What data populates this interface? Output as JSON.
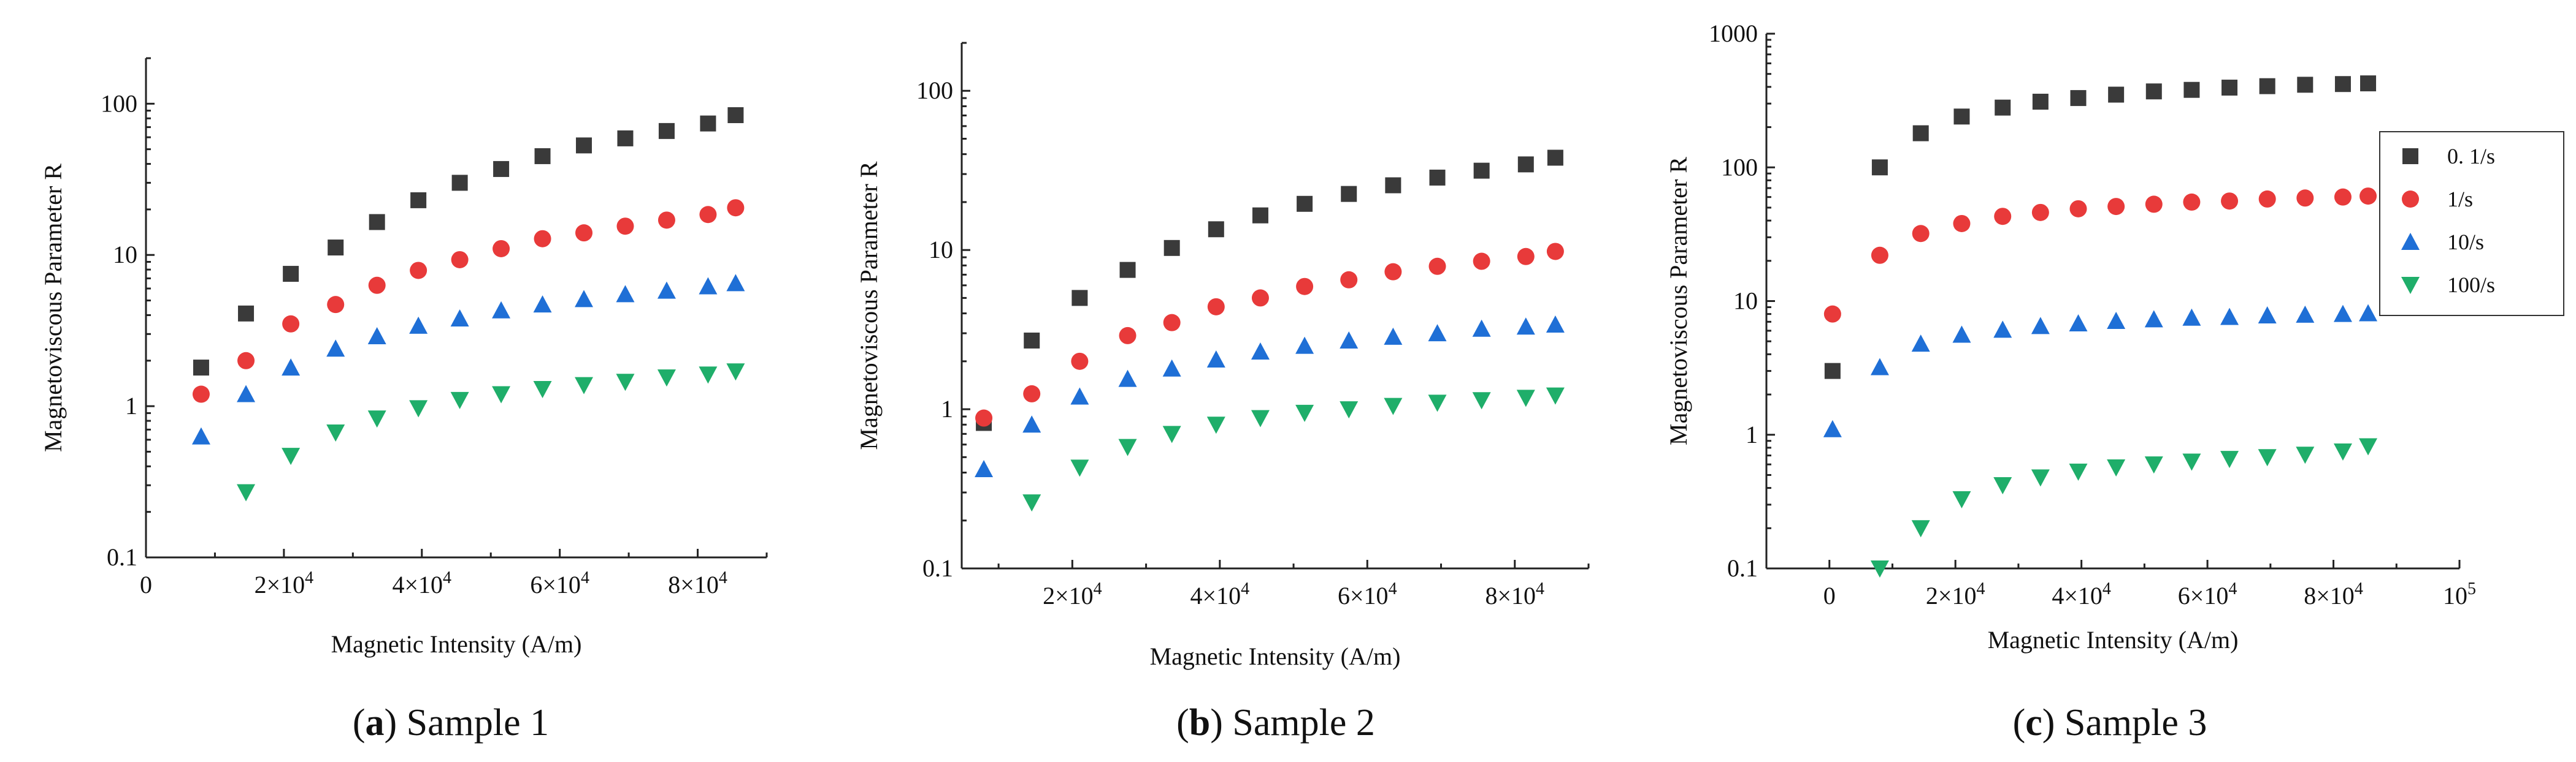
{
  "colors": {
    "s1": "#3a3a3a",
    "s2": "#e83a3a",
    "s3": "#1f6fd6",
    "s4": "#1fae6a"
  },
  "legend": [
    {
      "label": "0. 1/s",
      "marker": "square",
      "color": "#3a3a3a"
    },
    {
      "label": "1/s",
      "marker": "circle",
      "color": "#e83a3a"
    },
    {
      "label": "10/s",
      "marker": "triangle-up",
      "color": "#1f6fd6"
    },
    {
      "label": "100/s",
      "marker": "triangle-down",
      "color": "#1fae6a"
    }
  ],
  "chart_data": [
    {
      "type": "scatter",
      "caption_letter": "a",
      "caption_text": "Sample 1",
      "xlabel": "Magnetic Intensity (A/m)",
      "ylabel": "Magnetoviscous Parameter R",
      "xlim": [
        0,
        90000
      ],
      "ylim": [
        0.1,
        200
      ],
      "yscale": "log",
      "xticks": [
        {
          "value": 0,
          "base": "0",
          "exp": ""
        },
        {
          "value": 20000,
          "base": "2×10",
          "exp": "4"
        },
        {
          "value": 40000,
          "base": "4×10",
          "exp": "4"
        },
        {
          "value": 60000,
          "base": "6×10",
          "exp": "4"
        },
        {
          "value": 80000,
          "base": "8×10",
          "exp": "4"
        }
      ],
      "yticks": [
        {
          "value": 0.1,
          "label": "0.1"
        },
        {
          "value": 1,
          "label": "1"
        },
        {
          "value": 10,
          "label": "10"
        },
        {
          "value": 100,
          "label": "100"
        }
      ],
      "series": [
        {
          "name": "0. 1/s",
          "marker": "square",
          "color": "#3a3a3a",
          "x": [
            8000,
            14500,
            21000,
            27500,
            33500,
            39500,
            45500,
            51500,
            57500,
            63500,
            69500,
            75500,
            81500,
            85500
          ],
          "y": [
            1.8,
            4.1,
            7.5,
            11.2,
            16.5,
            23,
            30,
            37,
            45,
            53,
            59,
            66,
            74,
            84
          ]
        },
        {
          "name": "1/s",
          "marker": "circle",
          "color": "#e83a3a",
          "x": [
            8000,
            14500,
            21000,
            27500,
            33500,
            39500,
            45500,
            51500,
            57500,
            63500,
            69500,
            75500,
            81500,
            85500
          ],
          "y": [
            1.2,
            2.0,
            3.5,
            4.7,
            6.3,
            7.9,
            9.3,
            11,
            12.8,
            14,
            15.5,
            17,
            18.5,
            20.5
          ]
        },
        {
          "name": "10/s",
          "marker": "triangle-up",
          "color": "#1f6fd6",
          "x": [
            8000,
            14500,
            21000,
            27500,
            33500,
            39500,
            45500,
            51500,
            57500,
            63500,
            69500,
            75500,
            81500,
            85500
          ],
          "y": [
            0.63,
            1.2,
            1.8,
            2.4,
            2.9,
            3.4,
            3.8,
            4.3,
            4.7,
            5.1,
            5.5,
            5.8,
            6.2,
            6.5
          ]
        },
        {
          "name": "100/s",
          "marker": "triangle-down",
          "color": "#1fae6a",
          "x": [
            14500,
            21000,
            27500,
            33500,
            39500,
            45500,
            51500,
            57500,
            63500,
            69500,
            75500,
            81500,
            85500
          ],
          "y": [
            0.27,
            0.47,
            0.67,
            0.83,
            0.97,
            1.1,
            1.2,
            1.3,
            1.38,
            1.45,
            1.55,
            1.62,
            1.7
          ]
        }
      ]
    },
    {
      "type": "scatter",
      "caption_letter": "b",
      "caption_text": "Sample 2",
      "xlabel": "Magnetic Intensity (A/m)",
      "ylabel": "Magnetoviscous Parameter R",
      "xlim": [
        5000,
        90000
      ],
      "ylim": [
        0.1,
        200
      ],
      "yscale": "log",
      "xticks": [
        {
          "value": 20000,
          "base": "2×10",
          "exp": "4"
        },
        {
          "value": 40000,
          "base": "4×10",
          "exp": "4"
        },
        {
          "value": 60000,
          "base": "6×10",
          "exp": "4"
        },
        {
          "value": 80000,
          "base": "8×10",
          "exp": "4"
        }
      ],
      "yticks": [
        {
          "value": 0.1,
          "label": "0.1"
        },
        {
          "value": 1,
          "label": "1"
        },
        {
          "value": 10,
          "label": "10"
        },
        {
          "value": 100,
          "label": "100"
        }
      ],
      "series": [
        {
          "name": "0. 1/s",
          "marker": "square",
          "color": "#3a3a3a",
          "x": [
            8000,
            14500,
            21000,
            27500,
            33500,
            39500,
            45500,
            51500,
            57500,
            63500,
            69500,
            75500,
            81500,
            85500
          ],
          "y": [
            0.82,
            2.7,
            5.0,
            7.5,
            10.3,
            13.5,
            16.5,
            19.5,
            22.5,
            25.5,
            28.5,
            31.5,
            34.5,
            38
          ]
        },
        {
          "name": "1/s",
          "marker": "circle",
          "color": "#e83a3a",
          "x": [
            8000,
            14500,
            21000,
            27500,
            33500,
            39500,
            45500,
            51500,
            57500,
            63500,
            69500,
            75500,
            81500,
            85500
          ],
          "y": [
            0.88,
            1.25,
            2.0,
            2.9,
            3.5,
            4.4,
            5.0,
            5.9,
            6.5,
            7.3,
            7.9,
            8.5,
            9.1,
            9.8
          ]
        },
        {
          "name": "10/s",
          "marker": "triangle-up",
          "color": "#1f6fd6",
          "x": [
            8000,
            14500,
            21000,
            27500,
            33500,
            39500,
            45500,
            51500,
            57500,
            63500,
            69500,
            75500,
            81500,
            85500
          ],
          "y": [
            0.42,
            0.8,
            1.2,
            1.55,
            1.8,
            2.05,
            2.3,
            2.5,
            2.7,
            2.85,
            3.0,
            3.2,
            3.3,
            3.4
          ]
        },
        {
          "name": "100/s",
          "marker": "triangle-down",
          "color": "#1fae6a",
          "x": [
            14500,
            21000,
            27500,
            33500,
            39500,
            45500,
            51500,
            57500,
            63500,
            69500,
            75500,
            81500,
            85500
          ],
          "y": [
            0.26,
            0.43,
            0.58,
            0.7,
            0.8,
            0.88,
            0.95,
            1.0,
            1.05,
            1.1,
            1.14,
            1.18,
            1.22
          ]
        }
      ]
    },
    {
      "type": "scatter",
      "caption_letter": "c",
      "caption_text": "Sample 3",
      "xlabel": "Magnetic Intensity (A/m)",
      "ylabel": "Magnetoviscous Parameter R",
      "xlim": [
        -10000,
        100000
      ],
      "ylim": [
        0.1,
        1000
      ],
      "yscale": "log",
      "xticks": [
        {
          "value": 0,
          "base": "0",
          "exp": ""
        },
        {
          "value": 20000,
          "base": "2×10",
          "exp": "4"
        },
        {
          "value": 40000,
          "base": "4×10",
          "exp": "4"
        },
        {
          "value": 60000,
          "base": "6×10",
          "exp": "4"
        },
        {
          "value": 80000,
          "base": "8×10",
          "exp": "4"
        },
        {
          "value": 100000,
          "base": "10",
          "exp": "5"
        }
      ],
      "yticks": [
        {
          "value": 0.1,
          "label": "0.1"
        },
        {
          "value": 1,
          "label": "1"
        },
        {
          "value": 10,
          "label": "10"
        },
        {
          "value": 100,
          "label": "100"
        },
        {
          "value": 1000,
          "label": "1000"
        }
      ],
      "series": [
        {
          "name": "0. 1/s",
          "marker": "square",
          "color": "#3a3a3a",
          "x": [
            500,
            8000,
            14500,
            21000,
            27500,
            33500,
            39500,
            45500,
            51500,
            57500,
            63500,
            69500,
            75500,
            81500,
            85500
          ],
          "y": [
            3.0,
            100,
            180,
            240,
            280,
            310,
            330,
            350,
            370,
            380,
            395,
            405,
            415,
            420,
            425
          ]
        },
        {
          "name": "1/s",
          "marker": "circle",
          "color": "#e83a3a",
          "x": [
            500,
            8000,
            14500,
            21000,
            27500,
            33500,
            39500,
            45500,
            51500,
            57500,
            63500,
            69500,
            75500,
            81500,
            85500
          ],
          "y": [
            8.0,
            22,
            32,
            38,
            43,
            46,
            49,
            51,
            53,
            55,
            56,
            58,
            59,
            60,
            61
          ]
        },
        {
          "name": "10/s",
          "marker": "triangle-up",
          "color": "#1f6fd6",
          "x": [
            500,
            8000,
            14500,
            21000,
            27500,
            33500,
            39500,
            45500,
            51500,
            57500,
            63500,
            69500,
            75500,
            81500,
            85500
          ],
          "y": [
            1.1,
            3.2,
            4.8,
            5.6,
            6.1,
            6.5,
            6.8,
            7.1,
            7.3,
            7.5,
            7.6,
            7.8,
            7.9,
            8.0,
            8.1
          ]
        },
        {
          "name": "100/s",
          "marker": "triangle-down",
          "color": "#1fae6a",
          "x": [
            8000,
            14500,
            21000,
            27500,
            33500,
            39500,
            45500,
            51500,
            57500,
            63500,
            69500,
            75500,
            81500,
            85500
          ],
          "y": [
            0.1,
            0.2,
            0.33,
            0.42,
            0.48,
            0.53,
            0.57,
            0.6,
            0.63,
            0.66,
            0.68,
            0.71,
            0.75,
            0.82
          ]
        }
      ]
    }
  ]
}
